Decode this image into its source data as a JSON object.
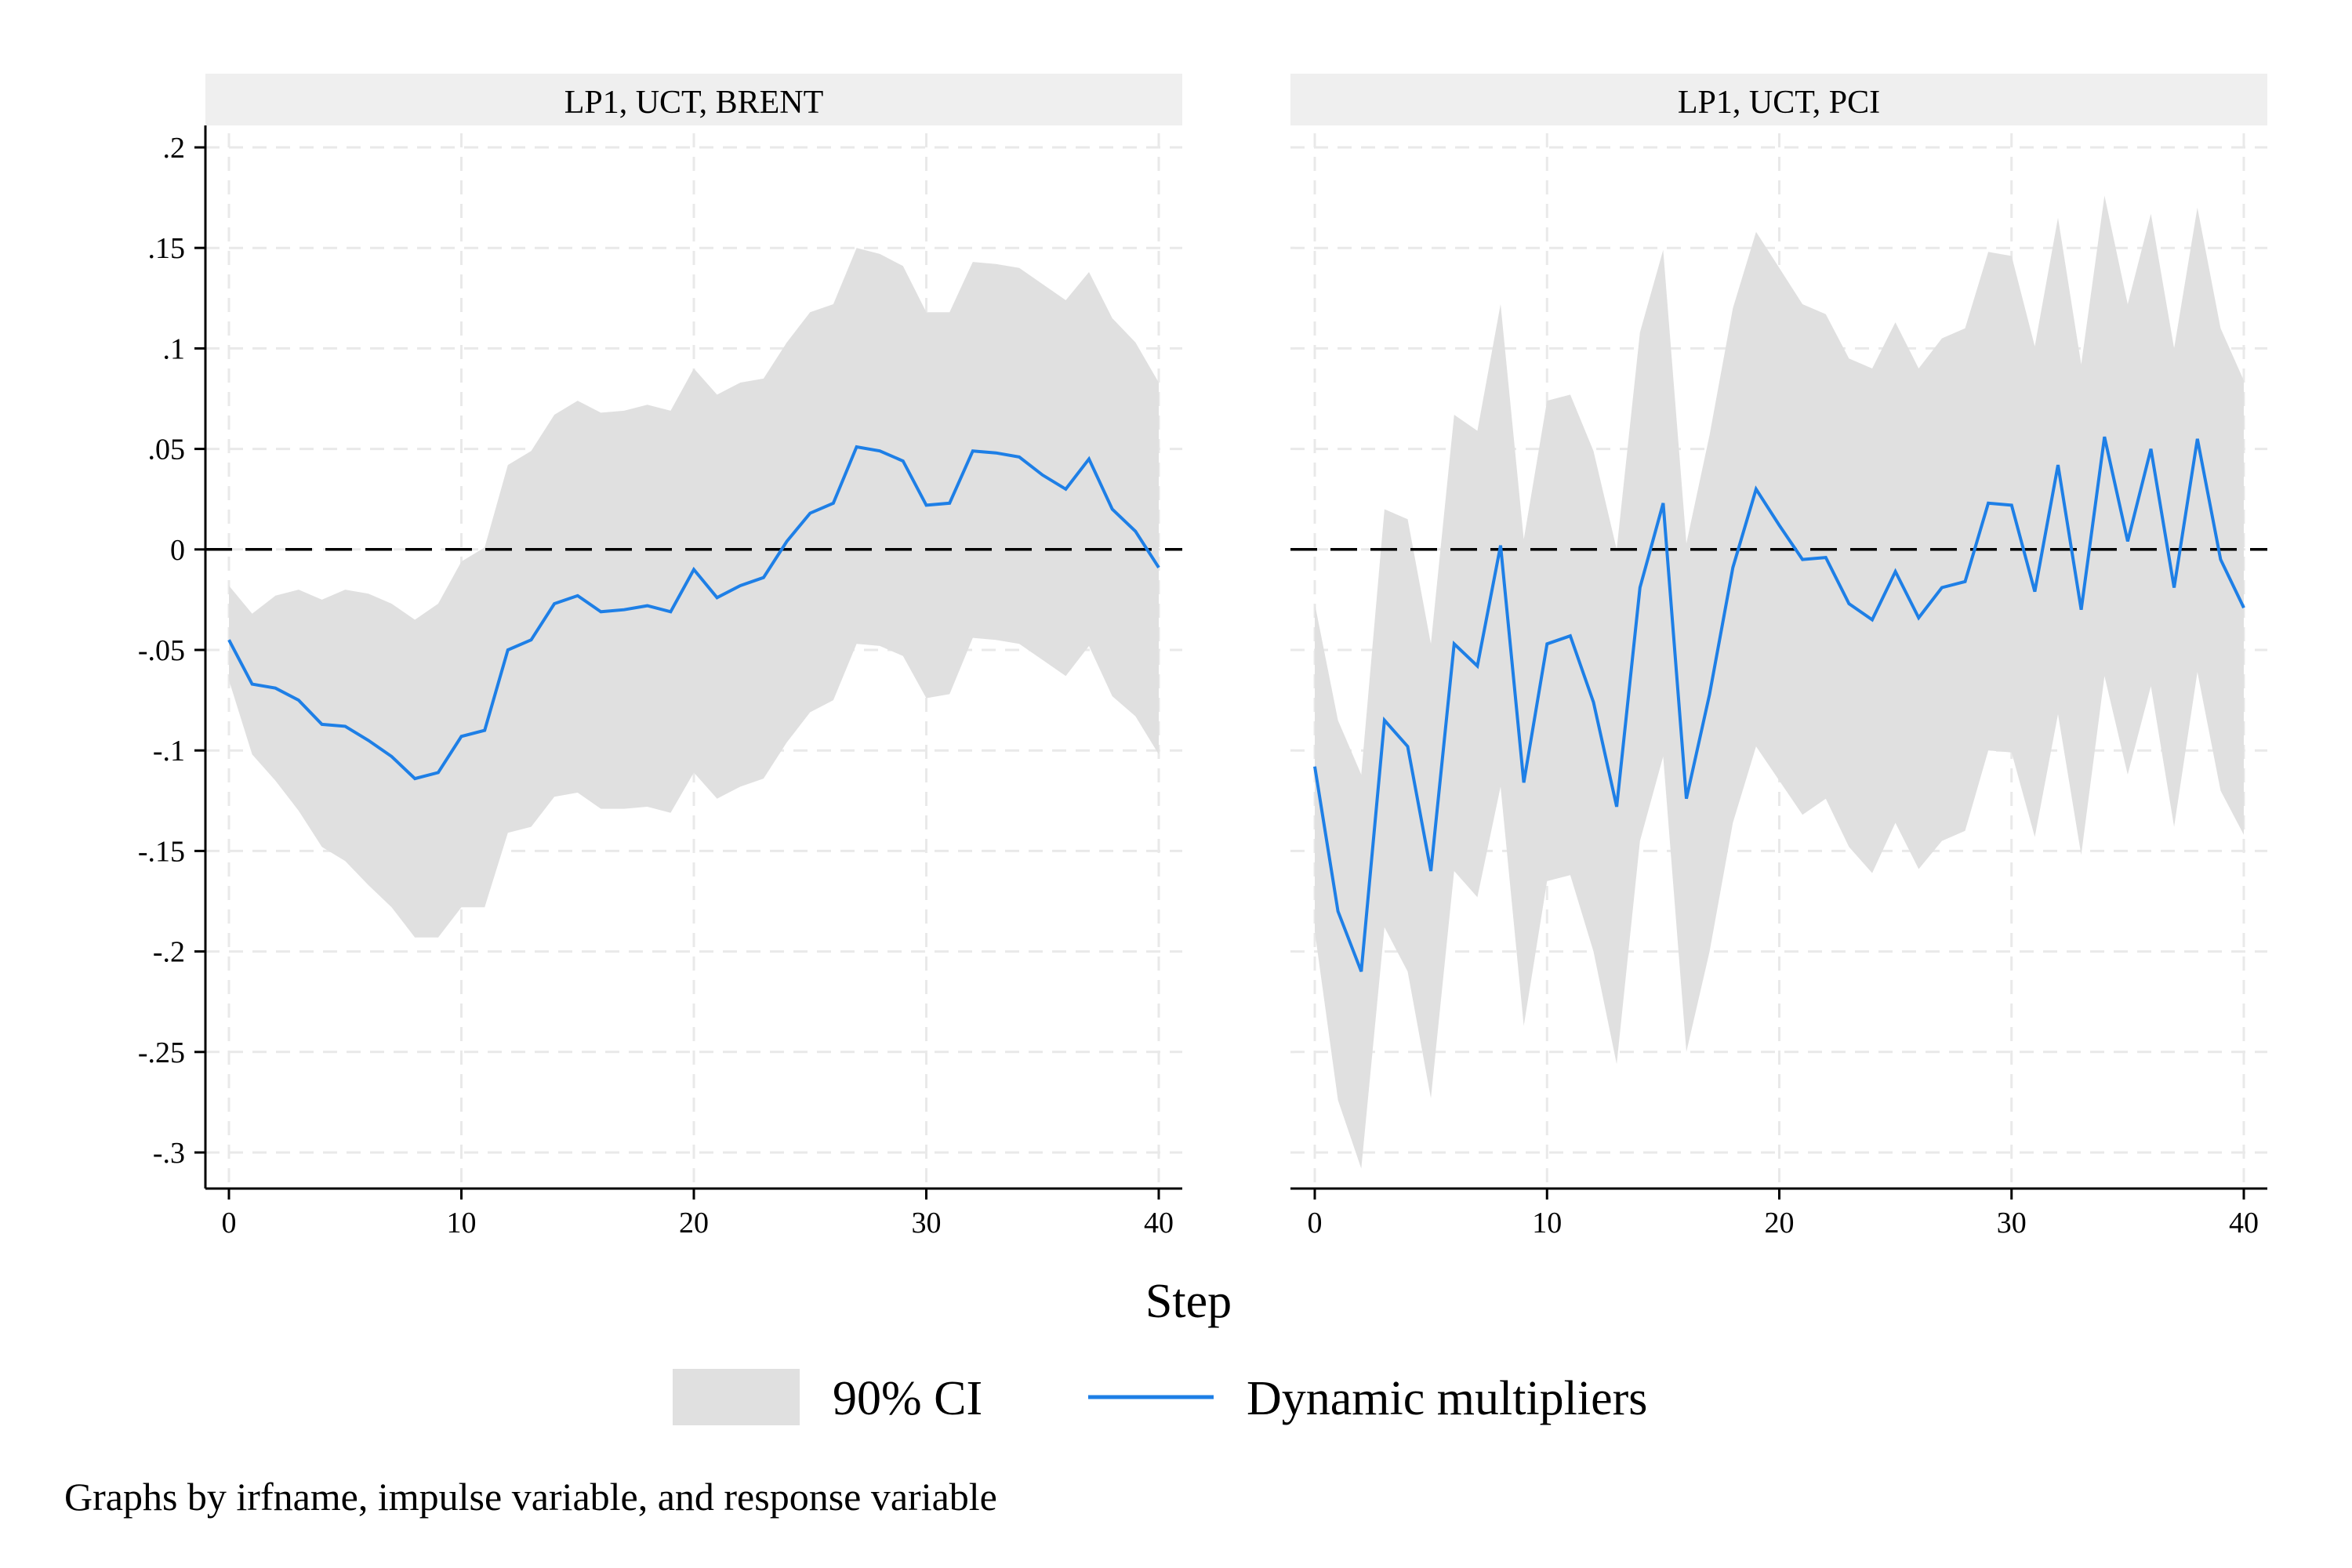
{
  "chart_data": [
    {
      "type": "line",
      "title": "LP1, UCT, BRENT",
      "xlabel": "Step",
      "ylabel": "",
      "xlim": [
        0,
        40
      ],
      "ylim": [
        -0.3,
        0.2
      ],
      "x_ticks": [
        0,
        10,
        20,
        30,
        40
      ],
      "x_tick_labels": [
        "0",
        "10",
        "20",
        "30",
        "40"
      ],
      "y_ticks": [
        0.2,
        0.15,
        0.1,
        0.05,
        0,
        -0.05,
        -0.1,
        -0.15,
        -0.2,
        -0.25,
        -0.3
      ],
      "y_tick_labels": [
        ".2",
        ".15",
        ".1",
        ".05",
        "0",
        "-.05",
        "-.1",
        "-.15",
        "-.2",
        "-.25",
        "-.3"
      ],
      "grid": true,
      "reference_line": 0,
      "x": [
        0,
        1,
        2,
        3,
        4,
        5,
        6,
        7,
        8,
        9,
        10,
        11,
        12,
        13,
        14,
        15,
        16,
        17,
        18,
        19,
        20,
        21,
        22,
        23,
        24,
        25,
        26,
        27,
        28,
        29,
        30,
        31,
        32,
        33,
        34,
        35,
        36,
        37,
        38,
        39,
        40
      ],
      "series": [
        {
          "name": "Dynamic multipliers",
          "values": [
            -0.045,
            -0.067,
            -0.069,
            -0.075,
            -0.087,
            -0.088,
            -0.095,
            -0.103,
            -0.114,
            -0.111,
            -0.093,
            -0.09,
            -0.05,
            -0.045,
            -0.027,
            -0.023,
            -0.031,
            -0.03,
            -0.028,
            -0.031,
            -0.01,
            -0.024,
            -0.018,
            -0.014,
            0.004,
            0.018,
            0.023,
            0.051,
            0.049,
            0.044,
            0.022,
            0.023,
            0.049,
            0.048,
            0.046,
            0.037,
            0.03,
            0.045,
            0.02,
            0.009,
            -0.009
          ]
        },
        {
          "name": "90% CI",
          "lower": [
            -0.065,
            -0.102,
            -0.115,
            -0.13,
            -0.148,
            -0.155,
            -0.167,
            -0.178,
            -0.193,
            -0.193,
            -0.178,
            -0.178,
            -0.141,
            -0.138,
            -0.123,
            -0.121,
            -0.129,
            -0.129,
            -0.128,
            -0.131,
            -0.111,
            -0.124,
            -0.118,
            -0.114,
            -0.096,
            -0.081,
            -0.075,
            -0.047,
            -0.048,
            -0.053,
            -0.074,
            -0.072,
            -0.044,
            -0.045,
            -0.047,
            -0.055,
            -0.063,
            -0.048,
            -0.073,
            -0.083,
            -0.102
          ],
          "upper": [
            -0.018,
            -0.032,
            -0.023,
            -0.02,
            -0.025,
            -0.02,
            -0.022,
            -0.027,
            -0.035,
            -0.027,
            -0.006,
            0.001,
            0.042,
            0.049,
            0.067,
            0.074,
            0.068,
            0.069,
            0.072,
            0.069,
            0.09,
            0.077,
            0.083,
            0.085,
            0.103,
            0.118,
            0.122,
            0.15,
            0.147,
            0.141,
            0.118,
            0.118,
            0.143,
            0.142,
            0.14,
            0.132,
            0.124,
            0.138,
            0.115,
            0.103,
            0.083
          ]
        }
      ]
    },
    {
      "type": "line",
      "title": "LP1, UCT, PCI",
      "xlabel": "Step",
      "ylabel": "",
      "xlim": [
        0,
        40
      ],
      "ylim": [
        -0.3,
        0.2
      ],
      "x_ticks": [
        0,
        10,
        20,
        30,
        40
      ],
      "x_tick_labels": [
        "0",
        "10",
        "20",
        "30",
        "40"
      ],
      "grid": true,
      "reference_line": 0,
      "x": [
        0,
        1,
        2,
        3,
        4,
        5,
        6,
        7,
        8,
        9,
        10,
        11,
        12,
        13,
        14,
        15,
        16,
        17,
        18,
        19,
        20,
        21,
        22,
        23,
        24,
        25,
        26,
        27,
        28,
        29,
        30,
        31,
        32,
        33,
        34,
        35,
        36,
        37,
        38,
        39,
        40
      ],
      "series": [
        {
          "name": "Dynamic multipliers",
          "values": [
            -0.108,
            -0.18,
            -0.21,
            -0.085,
            -0.098,
            -0.16,
            -0.047,
            -0.058,
            0.002,
            -0.116,
            -0.047,
            -0.043,
            -0.076,
            -0.128,
            -0.019,
            0.023,
            -0.124,
            -0.072,
            -0.009,
            0.03,
            0.012,
            -0.005,
            -0.004,
            -0.027,
            -0.035,
            -0.011,
            -0.034,
            -0.019,
            -0.016,
            0.023,
            0.022,
            -0.021,
            0.042,
            -0.03,
            0.056,
            0.004,
            0.05,
            -0.019,
            0.055,
            -0.005,
            -0.029
          ]
        },
        {
          "name": "90% CI",
          "lower": [
            -0.19,
            -0.274,
            -0.308,
            -0.188,
            -0.21,
            -0.273,
            -0.16,
            -0.173,
            -0.118,
            -0.237,
            -0.165,
            -0.162,
            -0.2,
            -0.256,
            -0.145,
            -0.103,
            -0.25,
            -0.2,
            -0.136,
            -0.098,
            -0.115,
            -0.132,
            -0.124,
            -0.148,
            -0.161,
            -0.136,
            -0.159,
            -0.145,
            -0.14,
            -0.1,
            -0.101,
            -0.143,
            -0.082,
            -0.152,
            -0.063,
            -0.112,
            -0.068,
            -0.138,
            -0.061,
            -0.12,
            -0.142
          ],
          "upper": [
            -0.027,
            -0.085,
            -0.112,
            0.02,
            0.015,
            -0.047,
            0.067,
            0.059,
            0.122,
            0.005,
            0.074,
            0.077,
            0.049,
            0.0,
            0.108,
            0.149,
            0.003,
            0.057,
            0.12,
            0.158,
            0.14,
            0.122,
            0.117,
            0.095,
            0.09,
            0.113,
            0.09,
            0.105,
            0.11,
            0.148,
            0.146,
            0.101,
            0.165,
            0.092,
            0.176,
            0.122,
            0.167,
            0.1,
            0.17,
            0.11,
            0.084
          ]
        }
      ]
    }
  ],
  "x_axis_title": "Step",
  "legend": {
    "position": "bottom",
    "items": [
      {
        "label": "90% CI",
        "color": "#e0e0e0",
        "kind": "area"
      },
      {
        "label": "Dynamic multipliers",
        "color": "#1e7fe6",
        "kind": "line"
      }
    ]
  },
  "note": "Graphs by irfname, impulse variable, and response variable",
  "colors": {
    "line": "#1e7fe6",
    "ci": "#e0e0e0",
    "title_strip": "#efefef",
    "grid": "#e9e9e9"
  }
}
